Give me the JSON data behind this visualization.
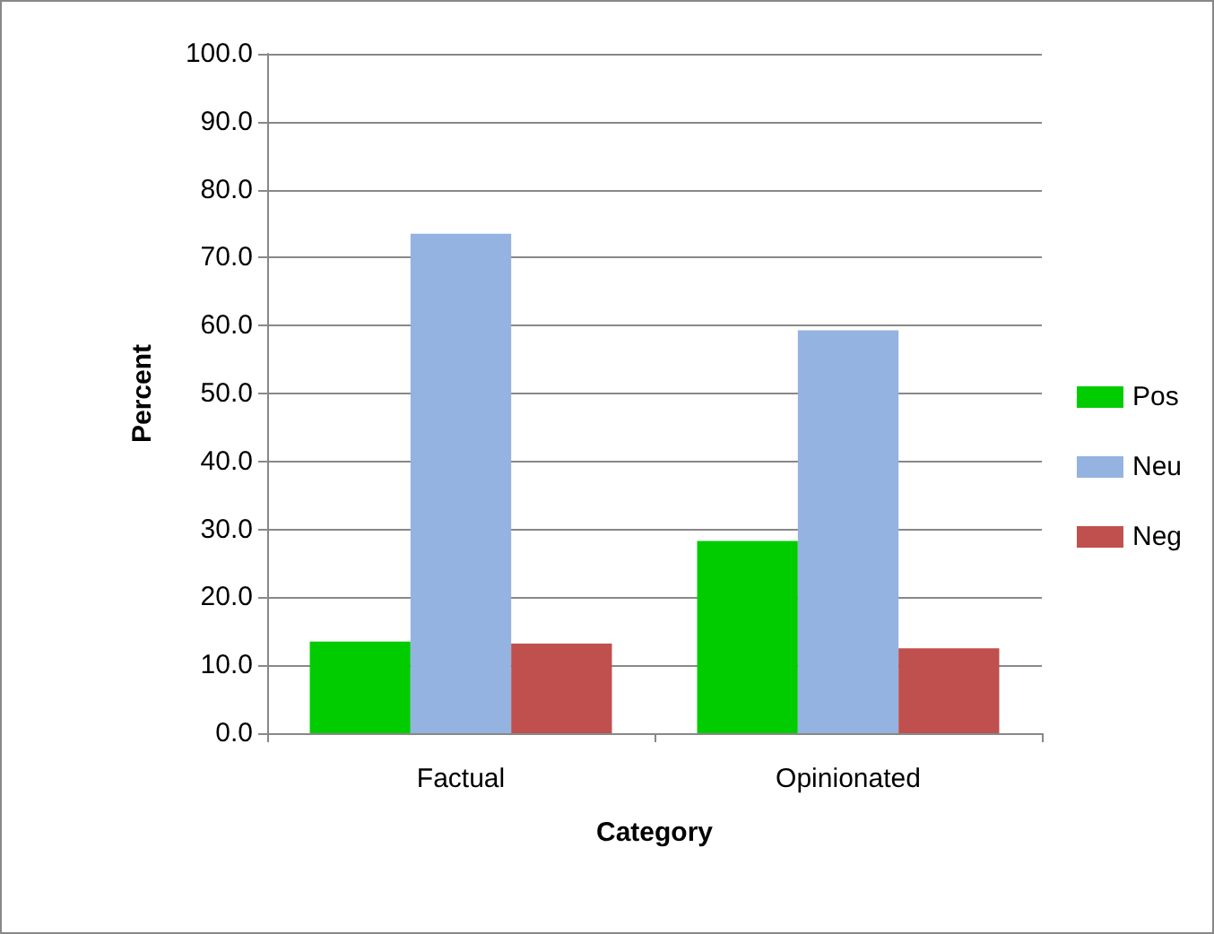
{
  "chart_data": {
    "type": "bar",
    "xlabel": "Category",
    "ylabel": "Percent",
    "categories": [
      "Factual",
      "Opinionated"
    ],
    "series": [
      {
        "name": "Pos",
        "color": "#00cc00",
        "values": [
          13.5,
          28.3
        ]
      },
      {
        "name": "Neu",
        "color": "#95b3e0",
        "values": [
          73.5,
          59.3
        ]
      },
      {
        "name": "Neg",
        "color": "#c0504d",
        "values": [
          13.2,
          12.5
        ]
      }
    ],
    "ylim": [
      0,
      100
    ],
    "yticks": [
      {
        "value": 0,
        "label": "0.0"
      },
      {
        "value": 10,
        "label": "10.0"
      },
      {
        "value": 20,
        "label": "20.0"
      },
      {
        "value": 30,
        "label": "30.0"
      },
      {
        "value": 40,
        "label": "40.0"
      },
      {
        "value": 50,
        "label": "50.0"
      },
      {
        "value": 60,
        "label": "60.0"
      },
      {
        "value": 70,
        "label": "70.0"
      },
      {
        "value": 80,
        "label": "80.0"
      },
      {
        "value": 90,
        "label": "90.0"
      },
      {
        "value": 100,
        "label": "100.0"
      }
    ],
    "grid": "y",
    "legend": "right"
  }
}
